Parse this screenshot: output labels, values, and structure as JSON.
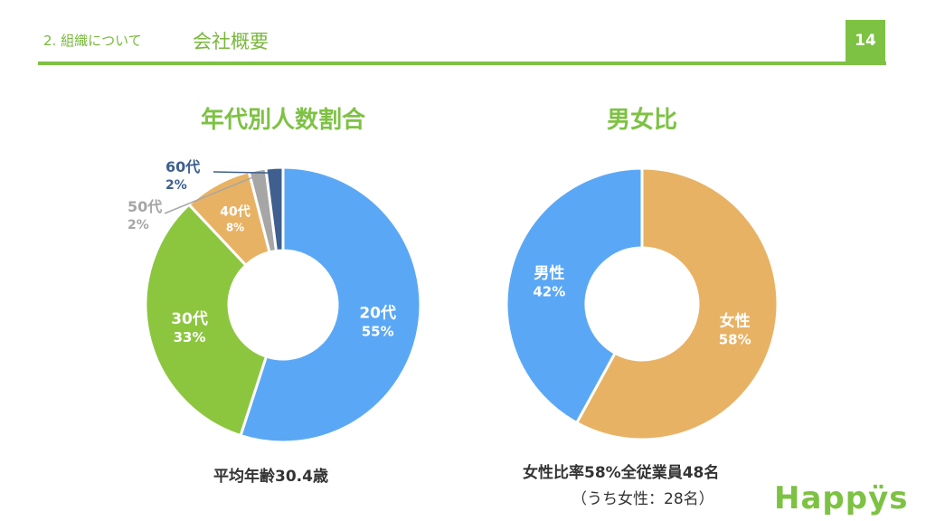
{
  "header": {
    "section_label": "2. 組織について",
    "title": "会社概要",
    "page_number": "14"
  },
  "colors": {
    "accent": "#7dc243",
    "blue": "#5aa8f5",
    "green": "#8cc63f",
    "orange": "#e8b265",
    "gray": "#a6a6a6",
    "navy": "#3f5f8f"
  },
  "chart_data": [
    {
      "type": "pie",
      "title": "年代別人数割合",
      "slices": [
        {
          "label": "20代",
          "value": 55,
          "value_text": "55%",
          "color": "#5aa8f5"
        },
        {
          "label": "30代",
          "value": 33,
          "value_text": "33%",
          "color": "#8cc63f"
        },
        {
          "label": "40代",
          "value": 8,
          "value_text": "8%",
          "color": "#e8b265"
        },
        {
          "label": "50代",
          "value": 2,
          "value_text": "2%",
          "color": "#a6a6a6"
        },
        {
          "label": "60代",
          "value": 2,
          "value_text": "2%",
          "color": "#3f5f8f"
        }
      ],
      "caption": "平均年齢30.4歳"
    },
    {
      "type": "pie",
      "title": "男女比",
      "slices": [
        {
          "label": "女性",
          "value": 58,
          "value_text": "58%",
          "color": "#e8b265"
        },
        {
          "label": "男性",
          "value": 42,
          "value_text": "42%",
          "color": "#5aa8f5"
        }
      ],
      "caption": "女性比率58%全従業員48名",
      "caption_sub": "（うち女性：28名）"
    }
  ],
  "logo": "Happÿs"
}
